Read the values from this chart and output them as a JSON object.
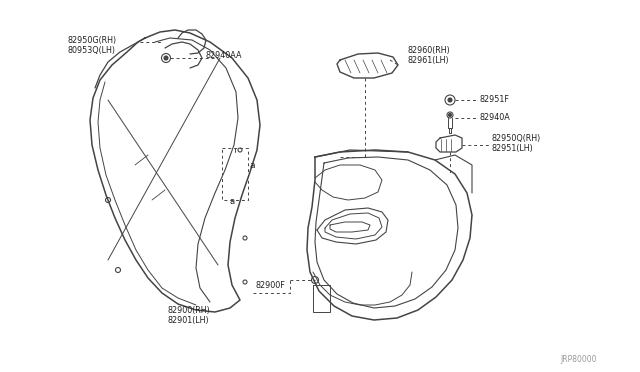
{
  "bg_color": "#ffffff",
  "line_color": "#444444",
  "text_color": "#222222",
  "watermark": "JRP80000",
  "labels": {
    "82950G_RH": "82950G(RH)",
    "80953Q_LH": "80953Q(LH)",
    "82940AA": "82940AA",
    "82960_RH": "82960(RH)",
    "82961_LH": "82961(LH)",
    "82951F": "82951F",
    "82940A": "82940A",
    "82950Q_RH": "82950Q(RH)",
    "82951_LH": "82951(LH)",
    "82900F": "82900F",
    "82900_RH": "82900(RH)",
    "82901_LH": "82901(LH)"
  }
}
